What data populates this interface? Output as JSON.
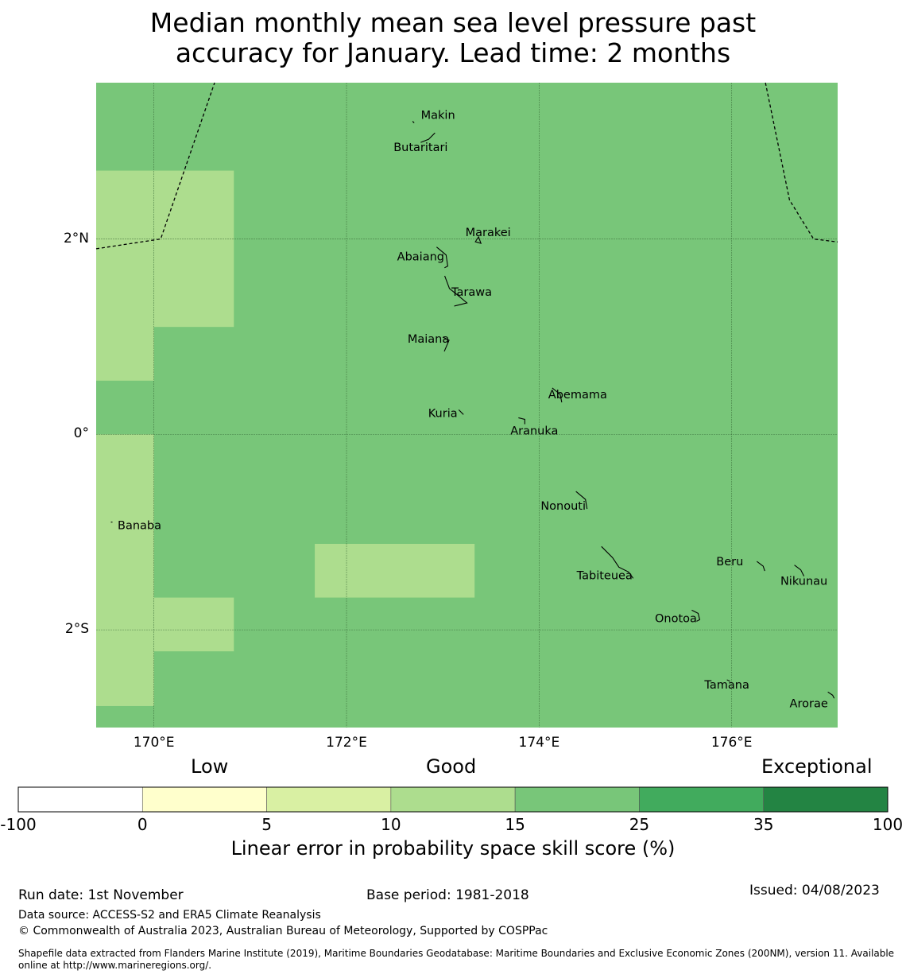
{
  "title_line1": "Median monthly mean sea level pressure past",
  "title_line2": "accuracy for January. Lead time: 2 months",
  "map": {
    "lon_range": [
      169.4,
      177.1
    ],
    "lat_range": [
      -3.0,
      3.6
    ],
    "lon_ticks": [
      {
        "value": 170,
        "label": "170°E"
      },
      {
        "value": 172,
        "label": "172°E"
      },
      {
        "value": 174,
        "label": "174°E"
      },
      {
        "value": 176,
        "label": "176°E"
      }
    ],
    "lat_ticks": [
      {
        "value": 2,
        "label": "2°N"
      },
      {
        "value": 0,
        "label": "0°"
      },
      {
        "value": -2,
        "label": "2°S"
      }
    ],
    "background_category_color": "#78c679",
    "light_cells_color": "#addd8e",
    "light_cells": [
      {
        "lon": [
          169.4,
          170.0
        ],
        "lat": [
          0.55,
          2.7
        ]
      },
      {
        "lon": [
          170.0,
          170.83
        ],
        "lat": [
          1.1,
          2.7
        ]
      },
      {
        "lon": [
          169.4,
          170.0
        ],
        "lat": [
          -2.78,
          0.0
        ]
      },
      {
        "lon": [
          170.0,
          170.83
        ],
        "lat": [
          -2.22,
          -1.67
        ]
      },
      {
        "lon": [
          171.67,
          173.33
        ],
        "lat": [
          -1.67,
          -1.12
        ]
      }
    ],
    "places": [
      {
        "name": "Makin",
        "lon": 172.95,
        "lat": 3.27
      },
      {
        "name": "Butaritari",
        "lon": 172.77,
        "lat": 2.94
      },
      {
        "name": "Marakei",
        "lon": 173.47,
        "lat": 2.07
      },
      {
        "name": "Abaiang",
        "lon": 172.77,
        "lat": 1.82
      },
      {
        "name": "Tarawa",
        "lon": 173.3,
        "lat": 1.46
      },
      {
        "name": "Maiana",
        "lon": 172.85,
        "lat": 0.98
      },
      {
        "name": "Abemama",
        "lon": 174.4,
        "lat": 0.41
      },
      {
        "name": "Kuria",
        "lon": 173.0,
        "lat": 0.22
      },
      {
        "name": "Aranuka",
        "lon": 173.95,
        "lat": 0.04
      },
      {
        "name": "Nonouti",
        "lon": 174.25,
        "lat": -0.73
      },
      {
        "name": "Banaba",
        "lon": 169.85,
        "lat": -0.93
      },
      {
        "name": "Tabiteuea",
        "lon": 174.68,
        "lat": -1.44
      },
      {
        "name": "Beru",
        "lon": 175.98,
        "lat": -1.3
      },
      {
        "name": "Nikunau",
        "lon": 176.75,
        "lat": -1.5
      },
      {
        "name": "Onotoa",
        "lon": 175.42,
        "lat": -1.88
      },
      {
        "name": "Tamana",
        "lon": 175.95,
        "lat": -2.56
      },
      {
        "name": "Arorae",
        "lon": 176.8,
        "lat": -2.75
      }
    ],
    "eez_boundaries": [
      [
        [
          169.4,
          1.9
        ],
        [
          170.07,
          2.0
        ],
        [
          170.63,
          3.6
        ]
      ],
      [
        [
          176.35,
          3.6
        ],
        [
          176.6,
          2.4
        ],
        [
          176.85,
          2.0
        ],
        [
          177.1,
          1.97
        ]
      ]
    ]
  },
  "colorbar": {
    "categories": [
      {
        "label": "Low"
      },
      {
        "label": "Good"
      },
      {
        "label": "Exceptional"
      }
    ],
    "ticks": [
      "-100",
      "0",
      "5",
      "10",
      "15",
      "25",
      "35",
      "100"
    ],
    "colors": [
      "#ffffff",
      "#ffffcc",
      "#d9f0a3",
      "#addd8e",
      "#78c679",
      "#41ab5d",
      "#238443"
    ],
    "title": "Linear error in probability space skill score (%)"
  },
  "footer": {
    "run_date": "Run date: 1st November",
    "base_period": "Base period: 1981-2018",
    "issued": "Issued: 04/08/2023",
    "data_source": "Data source: ACCESS-S2 and ERA5 Climate Reanalysis",
    "copyright": "© Commonwealth of Australia 2023, Australian Bureau of Meteorology, Supported by COSPPac",
    "shapefile_line1": "Shapefile data extracted from Flanders Marine Institute (2019), Maritime Boundaries Geodatabase: Maritime Boundaries and Exclusive Economic Zones (200NM), version 11. Available",
    "shapefile_line2": "online at http://www.marineregions.org/."
  }
}
